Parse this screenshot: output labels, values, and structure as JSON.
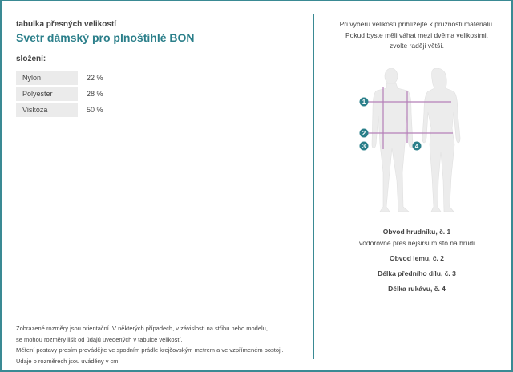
{
  "header": {
    "subtitle": "tabulka přesných velikostí",
    "title": "Svetr dámský pro plnoštíhlé BON"
  },
  "composition": {
    "label": "složení:",
    "rows": [
      {
        "name": "Nylon",
        "value": "22 %"
      },
      {
        "name": "Polyester",
        "value": "28 %"
      },
      {
        "name": "Viskóza",
        "value": "50 %"
      }
    ]
  },
  "footer": [
    "Zobrazené rozměry jsou orientační. V některých případech, v závislosti na střihu nebo modelu,",
    "se mohou rozměry lišit od údajů uvedených v tabulce velikostí.",
    "Měření postavy prosím provádějte ve spodním prádle krejčovským metrem a ve vzpřímeném postoji.",
    "Údaje o rozměrech jsou uváděny v cm."
  ],
  "tip": [
    "Při výběru velikosti přihlížejte k pružnosti materiálu.",
    "Pokud byste měli váhat mezi dvěma velikostmi,",
    "zvolte raději větší."
  ],
  "figure": {
    "markers": [
      "1",
      "2",
      "3",
      "4"
    ]
  },
  "legend": {
    "m1": "Obvod hrudníku, č. 1",
    "m1_desc": "vodorovně přes nejširší místo na hrudi",
    "m2": "Obvod lemu, č. 2",
    "m3": "Délka předního dílu, č. 3",
    "m4": "Délka rukávu, č. 4"
  },
  "colors": {
    "accent": "#2b7f8a",
    "border": "#3a8a94",
    "line": "#b57fb8"
  }
}
